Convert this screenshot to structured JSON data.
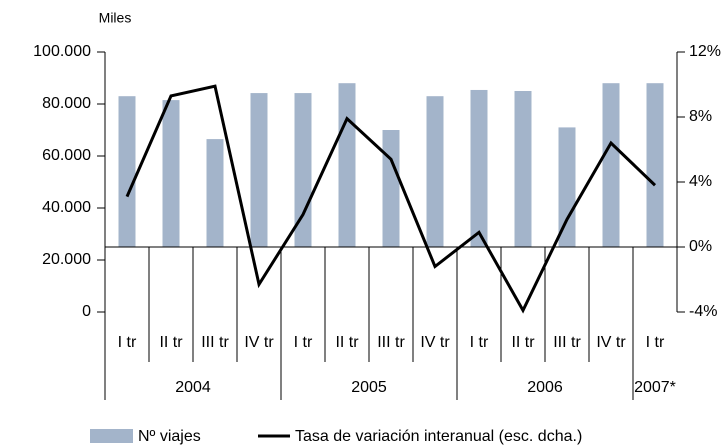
{
  "chart_data": {
    "type": "bar-line",
    "y_label": "Miles",
    "categories": [
      "I tr",
      "II tr",
      "III tr",
      "IV tr",
      "I tr",
      "II tr",
      "III tr",
      "IV tr",
      "I tr",
      "II tr",
      "III tr",
      "IV tr",
      "I tr"
    ],
    "groups": [
      "2004",
      "2005",
      "2006",
      "2007*"
    ],
    "series": [
      {
        "name": "Nº viajes",
        "type": "bar",
        "color": "#a3b4ca",
        "values": [
          83000,
          81500,
          66500,
          84200,
          84200,
          88000,
          70000,
          83000,
          85400,
          85000,
          71000,
          88000,
          88000
        ]
      },
      {
        "name": "Tasa de variación interanual (esc. dcha.)",
        "type": "line",
        "axis": "y2",
        "color": "#000000",
        "values": [
          3.1,
          9.3,
          9.9,
          -2.3,
          2.0,
          7.9,
          5.4,
          -1.2,
          0.9,
          -3.9,
          1.7,
          6.4,
          3.8
        ]
      }
    ],
    "ylim": [
      0,
      100000
    ],
    "yticks": [
      {
        "value": 0,
        "label": "0"
      },
      {
        "value": 20000,
        "label": "20.000"
      },
      {
        "value": 40000,
        "label": "40.000"
      },
      {
        "value": 60000,
        "label": "60.000"
      },
      {
        "value": 80000,
        "label": "80.000"
      },
      {
        "value": 100000,
        "label": "100.000"
      }
    ],
    "y2lim": [
      -4,
      12
    ],
    "y2ticks": [
      {
        "value": -4,
        "label": "-4%"
      },
      {
        "value": 0,
        "label": "0%"
      },
      {
        "value": 4,
        "label": "4%"
      },
      {
        "value": 8,
        "label": "8%"
      },
      {
        "value": 12,
        "label": "12%"
      }
    ]
  }
}
